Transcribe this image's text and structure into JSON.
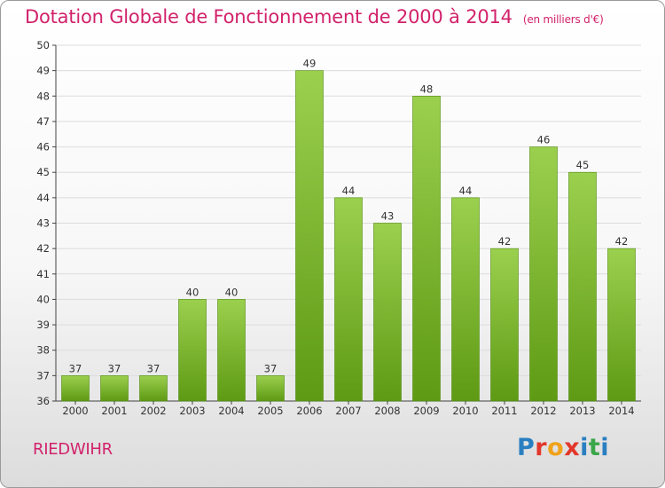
{
  "title": {
    "main": "Dotation Globale de Fonctionnement de 2000 à 2014",
    "unit": "(en milliers d'€)"
  },
  "commune": "RIEDWIHR",
  "logo": {
    "text": "Proxiti",
    "colors": [
      "#2a7fc1",
      "#e2372a",
      "#f0a21a",
      "#e2372a",
      "#2a7fc1",
      "#3aa64a",
      "#2a7fc1"
    ]
  },
  "colors": {
    "title": "#d2226b",
    "bar_light": "#9bd04e",
    "bar_dark": "#5e9a14",
    "grid": "#dcdcdc",
    "axis": "#444444"
  },
  "chart_data": {
    "type": "bar",
    "categories": [
      "2000",
      "2001",
      "2002",
      "2003",
      "2004",
      "2005",
      "2006",
      "2007",
      "2008",
      "2009",
      "2010",
      "2011",
      "2012",
      "2013",
      "2014"
    ],
    "values": [
      37,
      37,
      37,
      40,
      40,
      37,
      49,
      44,
      43,
      48,
      44,
      42,
      46,
      45,
      42
    ],
    "ylim": [
      36,
      50
    ],
    "yticks": [
      36,
      37,
      38,
      39,
      40,
      41,
      42,
      43,
      44,
      45,
      46,
      47,
      48,
      49,
      50
    ],
    "grid": true,
    "data_labels": true
  }
}
